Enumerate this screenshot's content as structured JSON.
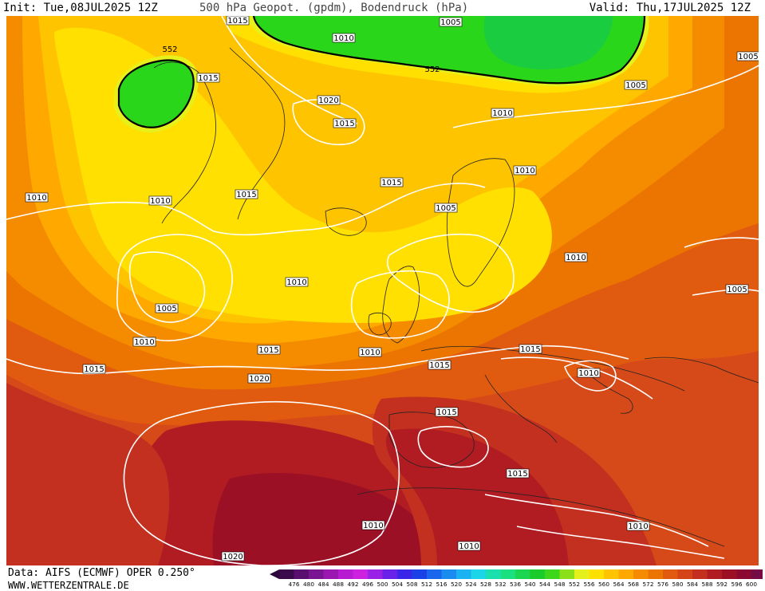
{
  "header": {
    "init_text": "Init: Tue,08JUL2025 12Z",
    "title": "500 hPa Geopot. (gpdm), Bodendruck (hPa)",
    "valid_text": "Valid: Thu,17JUL2025 12Z"
  },
  "footer": {
    "data_text": "Data: AIFS (ECMWF) OPER 0.250°",
    "site_text": "WWW.WETTERZENTRALE.DE"
  },
  "map": {
    "geopotential_contour_labels": [
      "552",
      "552"
    ],
    "pressure_labels": [
      "1015",
      "1010",
      "1005",
      "1005",
      "1015",
      "1020",
      "1015",
      "1010",
      "1010",
      "1015",
      "1005",
      "1010",
      "1010",
      "1010",
      "1005",
      "1010",
      "1005",
      "1015",
      "1010",
      "1015",
      "1010",
      "1015",
      "1005",
      "1020",
      "1015",
      "1010",
      "1015",
      "1015",
      "1015",
      "1010",
      "1020",
      "1010",
      "1010"
    ]
  },
  "colorbar": {
    "ticks": [
      "476",
      "480",
      "484",
      "488",
      "492",
      "496",
      "500",
      "504",
      "508",
      "512",
      "516",
      "520",
      "524",
      "528",
      "532",
      "536",
      "540",
      "544",
      "548",
      "552",
      "556",
      "560",
      "564",
      "568",
      "572",
      "576",
      "580",
      "584",
      "588",
      "592",
      "596",
      "600"
    ],
    "colors": [
      "#3a0a4a",
      "#5a0f6e",
      "#7a1490",
      "#9a18b0",
      "#b81cd0",
      "#cc22e0",
      "#9a22e6",
      "#6a22e8",
      "#3a26e8",
      "#1a40e8",
      "#1a66ec",
      "#1a8cf0",
      "#1ab2f0",
      "#1ad6e8",
      "#1ae0b0",
      "#1ae080",
      "#1ad650",
      "#1acc2a",
      "#3cd61a",
      "#8ce01a",
      "#e6f01a",
      "#ffe000",
      "#ffc400",
      "#ffa800",
      "#f58c00",
      "#ec7400",
      "#e05a10",
      "#d44418",
      "#c43020",
      "#b01c22",
      "#9c1026",
      "#8a0a32",
      "#760a44"
    ],
    "min_color": "#2a0a3a",
    "max_color": "#ff40c8"
  }
}
